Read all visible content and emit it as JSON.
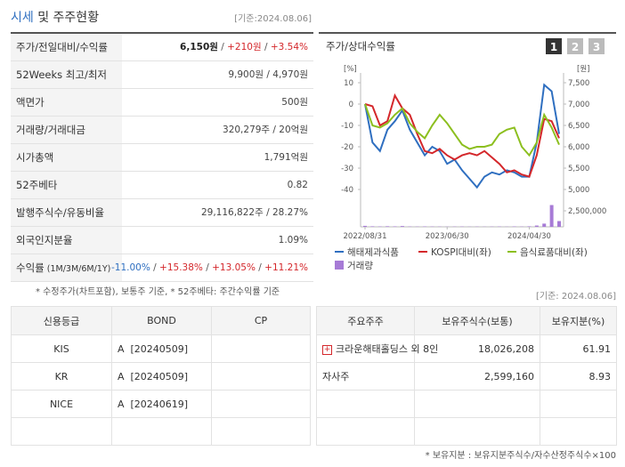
{
  "header": {
    "title_main": "시세",
    "title_rest": "및 주주현황",
    "date": "[기준:2024.08.06]"
  },
  "quote_table": {
    "rows": [
      {
        "label": [
          "주가/전일대비/수익률"
        ],
        "value": [
          {
            "text": "6,150원",
            "color": "#222",
            "bold": true
          },
          {
            "text": " / ",
            "color": "#555"
          },
          {
            "text": "+210원",
            "color": "#d4272b"
          },
          {
            "text": " / ",
            "color": "#555"
          },
          {
            "text": "+3.54%",
            "color": "#d4272b"
          }
        ]
      },
      {
        "label": [
          "52Weeks 최고/최저"
        ],
        "value": [
          {
            "text": "9,900원 / 4,970원",
            "color": "#444"
          }
        ]
      },
      {
        "label": [
          "액면가"
        ],
        "value": [
          {
            "text": "500원",
            "color": "#444"
          }
        ]
      },
      {
        "label": [
          "거래량/거래대금"
        ],
        "value": [
          {
            "text": "320,279주 / 20억원",
            "color": "#444"
          }
        ]
      },
      {
        "label": [
          "시가총액"
        ],
        "value": [
          {
            "text": "1,791억원",
            "color": "#444"
          }
        ]
      },
      {
        "label": [
          "52주베타"
        ],
        "value": [
          {
            "text": "0.82",
            "color": "#444"
          }
        ]
      },
      {
        "label": [
          "발행주식수/유동비율"
        ],
        "value": [
          {
            "text": "29,116,822주 / 28.27%",
            "color": "#444"
          }
        ]
      },
      {
        "label": [
          "외국인지분율"
        ],
        "value": [
          {
            "text": "1.09%",
            "color": "#444"
          }
        ]
      },
      {
        "label": [
          "수익률",
          " (1M/3M/6M/1Y)"
        ],
        "value": [
          {
            "text": "-11.00%",
            "color": "#2f6fc0"
          },
          {
            "text": " / ",
            "color": "#555"
          },
          {
            "text": "+15.38%",
            "color": "#d4272b"
          },
          {
            "text": " / ",
            "color": "#555"
          },
          {
            "text": "+13.05%",
            "color": "#d4272b"
          },
          {
            "text": " / ",
            "color": "#555"
          },
          {
            "text": "+11.21%",
            "color": "#d4272b"
          }
        ]
      }
    ],
    "note": "* 수정주가(차트포함), 보통주 기준, * 52주베타: 주간수익률 기준"
  },
  "chart_data": {
    "type": "line",
    "title": "주가/상대수익률",
    "tabs": [
      "1",
      "2",
      "3"
    ],
    "y_unit": "[%]",
    "y2_unit": "[원]",
    "categories": [
      "2022/08/31",
      null,
      null,
      null,
      null,
      null,
      null,
      null,
      null,
      null,
      null,
      "2023/06/30",
      null,
      null,
      null,
      null,
      null,
      null,
      null,
      null,
      null,
      null,
      "2024/04/30",
      null,
      null,
      null,
      null
    ],
    "ylim": [
      -40,
      10
    ],
    "yticks": [
      10,
      0,
      -10,
      -20,
      -30,
      -40
    ],
    "y2lim": [
      5000,
      7500
    ],
    "y2ticks": [
      {
        "value": 7500,
        "label": "7,500"
      },
      {
        "value": 7000,
        "label": "7,000"
      },
      {
        "value": 6500,
        "label": "6,500"
      },
      {
        "value": 6000,
        "label": "6,000"
      },
      {
        "value": 5500,
        "label": "5,500"
      },
      {
        "value": 5000,
        "label": "5,000"
      }
    ],
    "y3lim": [
      0,
      2500000
    ],
    "y3ticks": [
      {
        "value": 2500000,
        "label": "2,500,000"
      }
    ],
    "series": [
      {
        "name": "해태제과식품",
        "color": "#2f6fc0",
        "axis": "y2",
        "type": "line",
        "values": [
          7000,
          6100,
          5900,
          6400,
          6600,
          6850,
          6400,
          6100,
          5800,
          6000,
          5900,
          5600,
          5700,
          5450,
          5250,
          5050,
          5300,
          5400,
          5350,
          5450,
          5400,
          5300,
          5300,
          6100,
          7450,
          7300,
          6300
        ]
      },
      {
        "name": "KOSPI대비(좌)",
        "color": "#d4272b",
        "axis": "y",
        "type": "line",
        "values": [
          0,
          -1,
          -10,
          -8,
          4,
          -2,
          -5,
          -14,
          -22,
          -23,
          -21,
          -24,
          -26,
          -24,
          -23,
          -24,
          -22,
          -25,
          -28,
          -32,
          -31,
          -33,
          -34,
          -24,
          -7,
          -8,
          -16
        ]
      },
      {
        "name": "음식료품대비(좌)",
        "color": "#8cbf1f",
        "axis": "y",
        "type": "line",
        "values": [
          0,
          -10,
          -11,
          -9,
          -5,
          -2,
          -9,
          -13,
          -16,
          -10,
          -5,
          -9,
          -14,
          -19,
          -21,
          -20,
          -20,
          -19,
          -14,
          -12,
          -11,
          -20,
          -24,
          -18,
          -5,
          -11,
          -19
        ]
      },
      {
        "name": "거래량",
        "color": "#a77bd6",
        "axis": "y3",
        "type": "bar",
        "values": [
          150000,
          80000,
          60000,
          90000,
          70000,
          120000,
          50000,
          40000,
          60000,
          50000,
          40000,
          30000,
          40000,
          50000,
          30000,
          40000,
          30000,
          40000,
          50000,
          30000,
          60000,
          40000,
          80000,
          200000,
          500000,
          3400000,
          900000
        ]
      }
    ]
  },
  "credit_table": {
    "headers": [
      "신용등급",
      "BOND",
      "CP"
    ],
    "rows": [
      [
        "KIS",
        "A  [20240509]"
      ],
      [
        "KR",
        "A  [20240509]"
      ],
      [
        "NICE",
        "A  [20240619]"
      ]
    ]
  },
  "holders_table": {
    "date": "[기준: 2024.08.06]",
    "headers": [
      "주요주주",
      "보유주식수(보통)",
      "보유지분(%)"
    ],
    "rows": [
      [
        "크라운해태홀딩스 외 8인",
        "18,026,208",
        "61.91"
      ],
      [
        "자사주",
        "2,599,160",
        "8.93"
      ]
    ],
    "footnote": "* 보유지분 : 보유지분주식수/자수산정주식수×100"
  }
}
